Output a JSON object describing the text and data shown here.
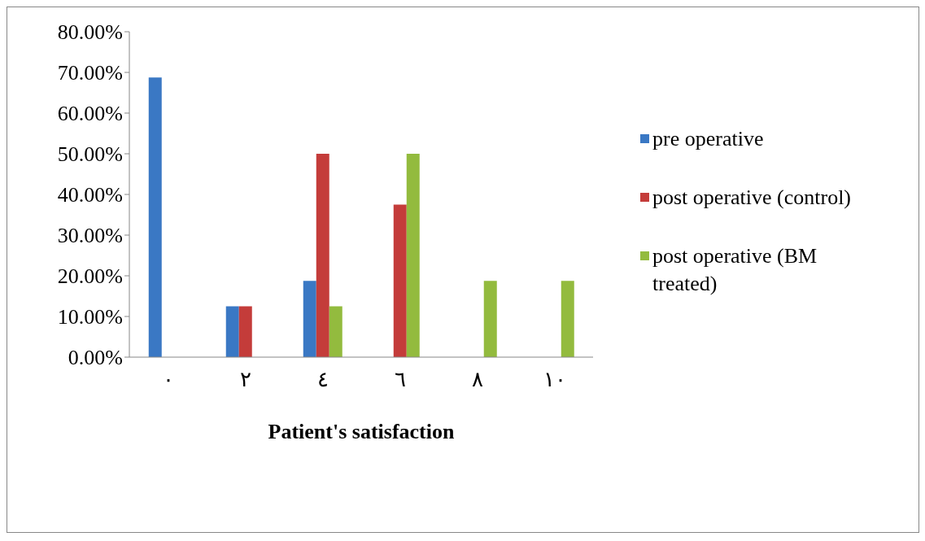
{
  "chart_data": {
    "type": "bar",
    "xlabel": "Patient's satisfaction",
    "categories": [
      "٠",
      "٢",
      "٤",
      "٦",
      "٨",
      "١٠"
    ],
    "series": [
      {
        "name": "pre operative",
        "color": "#3a78c4",
        "values": [
          68.75,
          12.5,
          18.75,
          0,
          0,
          0
        ]
      },
      {
        "name": "post operative (control)",
        "color": "#c43c3a",
        "values": [
          0,
          12.5,
          50,
          37.5,
          0,
          0
        ]
      },
      {
        "name": "post operative (BM treated)",
        "color": "#93bb3e",
        "values": [
          0,
          0,
          12.5,
          50,
          18.75,
          18.75
        ]
      }
    ],
    "ylim": [
      0,
      80
    ],
    "yticks": [
      {
        "value": 0,
        "label": "0.00%"
      },
      {
        "value": 10,
        "label": "10.00%"
      },
      {
        "value": 20,
        "label": "20.00%"
      },
      {
        "value": 30,
        "label": "30.00%"
      },
      {
        "value": 40,
        "label": "40.00%"
      },
      {
        "value": 50,
        "label": "50.00%"
      },
      {
        "value": 60,
        "label": "60.00%"
      },
      {
        "value": 70,
        "label": "70.00%"
      },
      {
        "value": 80,
        "label": "80.00%"
      }
    ],
    "grid": false,
    "legend": "right"
  }
}
